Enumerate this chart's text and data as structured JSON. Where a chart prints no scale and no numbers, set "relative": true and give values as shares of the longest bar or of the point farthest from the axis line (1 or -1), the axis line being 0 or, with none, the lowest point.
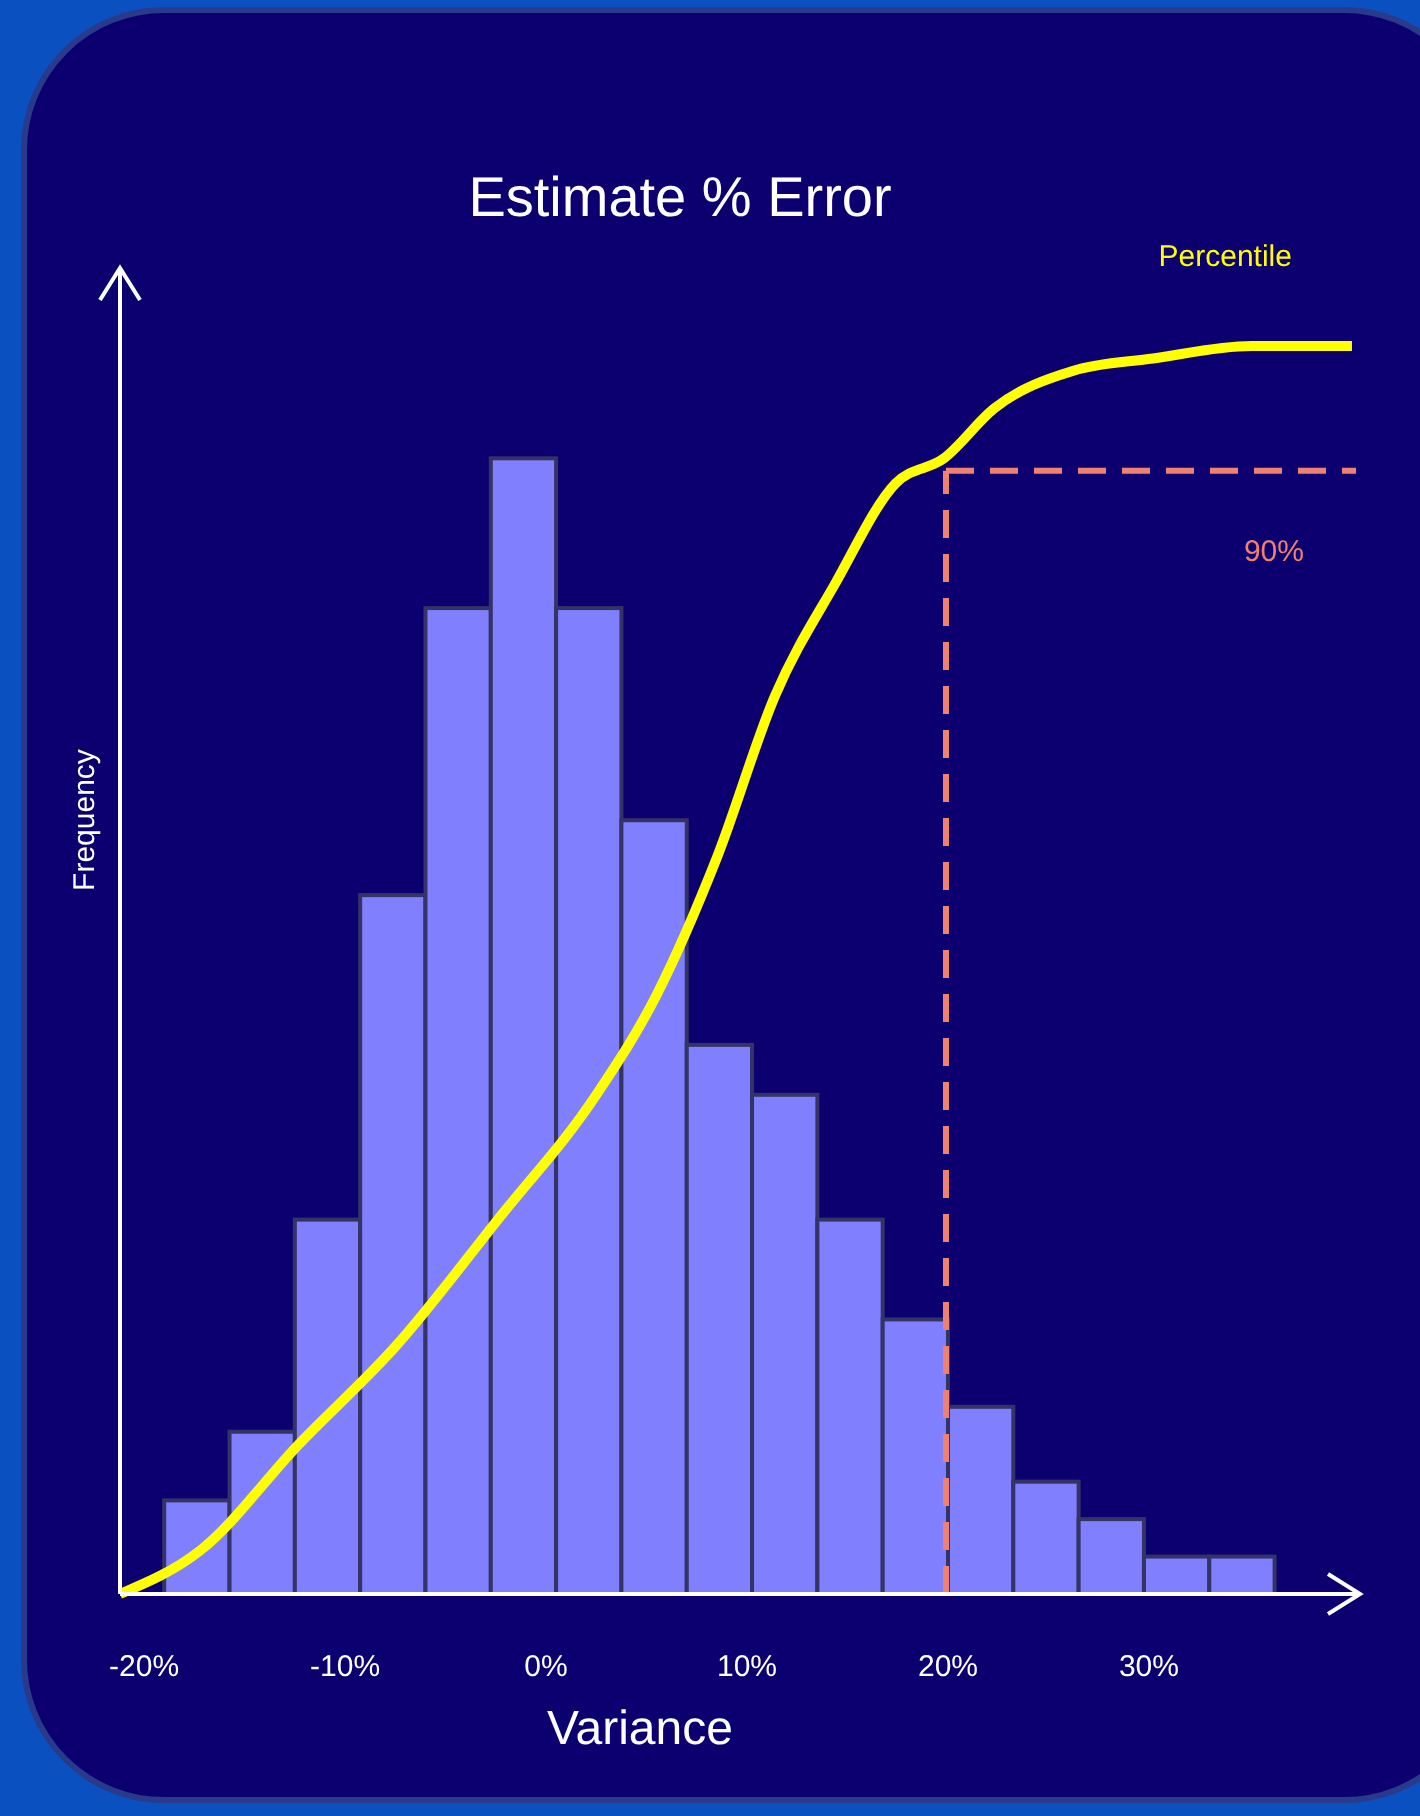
{
  "chart_data": {
    "type": "histogram",
    "title": "Estimate % Error",
    "xlabel": "Variance",
    "ylabel": "Frequency",
    "relative": true,
    "bins": [
      -19,
      -15.75,
      -12.5,
      -9.25,
      -6,
      -2.75,
      0.5,
      3.75,
      7,
      10.25,
      13.5,
      16.75,
      20,
      23.25,
      26.5,
      29.75,
      33,
      36.25
    ],
    "xlim": [
      -21.2,
      40.5
    ],
    "xticks": [
      {
        "value": -20,
        "label": "-20%"
      },
      {
        "value": -10,
        "label": "-10%"
      },
      {
        "value": 0,
        "label": "0%"
      },
      {
        "value": 10,
        "label": "10%"
      },
      {
        "value": 20,
        "label": "20%"
      },
      {
        "value": 30,
        "label": "30%"
      }
    ],
    "series": [
      {
        "color": "#8080ff",
        "values": [
          0.075,
          0.13,
          0.3,
          0.56,
          0.79,
          0.91,
          0.79,
          0.62,
          0.44,
          0.4,
          0.3,
          0.22,
          0.15,
          0.09,
          0.06,
          0.03,
          0.03
        ]
      },
      {
        "type": "line",
        "name": "Percentile",
        "color": "#ffff00",
        "x": [
          -21.2,
          -17.2,
          -12.3,
          -7.4,
          -2.4,
          2.5,
          5.5,
          8.5,
          11.4,
          14.4,
          17.4,
          19.8,
          22.3,
          26.2,
          30.2,
          35.1,
          40.1
        ],
        "values": [
          0,
          0.035,
          0.12,
          0.2,
          0.3,
          0.4,
          0.48,
          0.59,
          0.72,
          0.81,
          0.89,
          0.91,
          0.95,
          0.98,
          0.99,
          1,
          1
        ]
      }
    ],
    "ref_lines": [
      {
        "axis": "x",
        "value": 19.9,
        "color": "#f08070",
        "line_style": "dashed"
      },
      {
        "axis": "y",
        "value": 0.9,
        "label": "90%",
        "color": "#f08070",
        "line_style": "dashed"
      }
    ],
    "grid": false
  }
}
